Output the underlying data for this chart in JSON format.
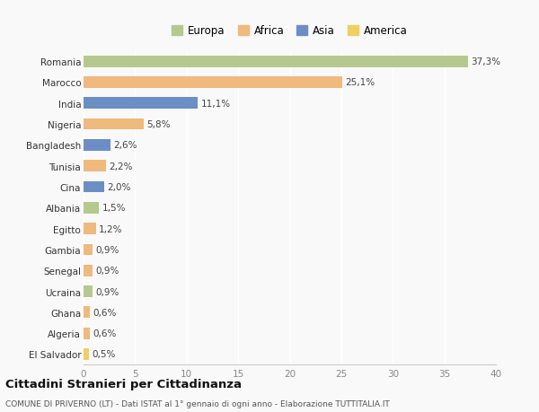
{
  "countries": [
    "Romania",
    "Marocco",
    "India",
    "Nigeria",
    "Bangladesh",
    "Tunisia",
    "Cina",
    "Albania",
    "Egitto",
    "Gambia",
    "Senegal",
    "Ucraina",
    "Ghana",
    "Algeria",
    "El Salvador"
  ],
  "values": [
    37.3,
    25.1,
    11.1,
    5.8,
    2.6,
    2.2,
    2.0,
    1.5,
    1.2,
    0.9,
    0.9,
    0.9,
    0.6,
    0.6,
    0.5
  ],
  "labels": [
    "37,3%",
    "25,1%",
    "11,1%",
    "5,8%",
    "2,6%",
    "2,2%",
    "2,0%",
    "1,5%",
    "1,2%",
    "0,9%",
    "0,9%",
    "0,9%",
    "0,6%",
    "0,6%",
    "0,5%"
  ],
  "continents": [
    "Europa",
    "Africa",
    "Asia",
    "Africa",
    "Asia",
    "Africa",
    "Asia",
    "Europa",
    "Africa",
    "Africa",
    "Africa",
    "Europa",
    "Africa",
    "Africa",
    "America"
  ],
  "colors": {
    "Europa": "#b5c98e",
    "Africa": "#f0b97d",
    "Asia": "#6b8ec4",
    "America": "#f0d060"
  },
  "legend_order": [
    "Europa",
    "Africa",
    "Asia",
    "America"
  ],
  "xlim": [
    0,
    40
  ],
  "xticks": [
    0,
    5,
    10,
    15,
    20,
    25,
    30,
    35,
    40
  ],
  "title": "Cittadini Stranieri per Cittadinanza",
  "subtitle": "COMUNE DI PRIVERNO (LT) - Dati ISTAT al 1° gennaio di ogni anno - Elaborazione TUTTITALIA.IT",
  "bg_color": "#f9f9f9",
  "grid_color": "#ffffff",
  "bar_height": 0.55
}
